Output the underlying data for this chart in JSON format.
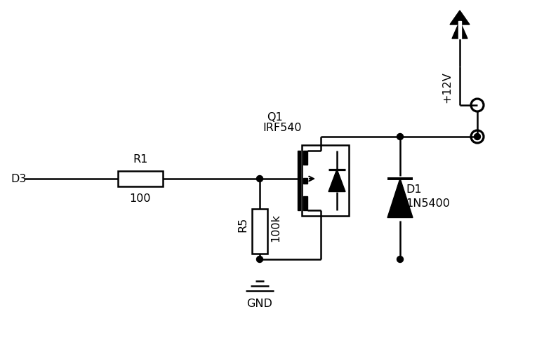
{
  "bg_color": "#ffffff",
  "line_color": "#000000",
  "lw": 1.8,
  "figsize": [
    7.75,
    4.98
  ],
  "dpi": 100,
  "labels": {
    "D3": "D3",
    "R1_name": "R1",
    "R1_val": "100",
    "R5_name": "R5",
    "R5_val": "100k",
    "Q1": "Q1",
    "Q1_part": "IRF540",
    "D1_name": "D1",
    "D1_val": "1N5400",
    "GND": "GND",
    "VCC": "+12V"
  }
}
